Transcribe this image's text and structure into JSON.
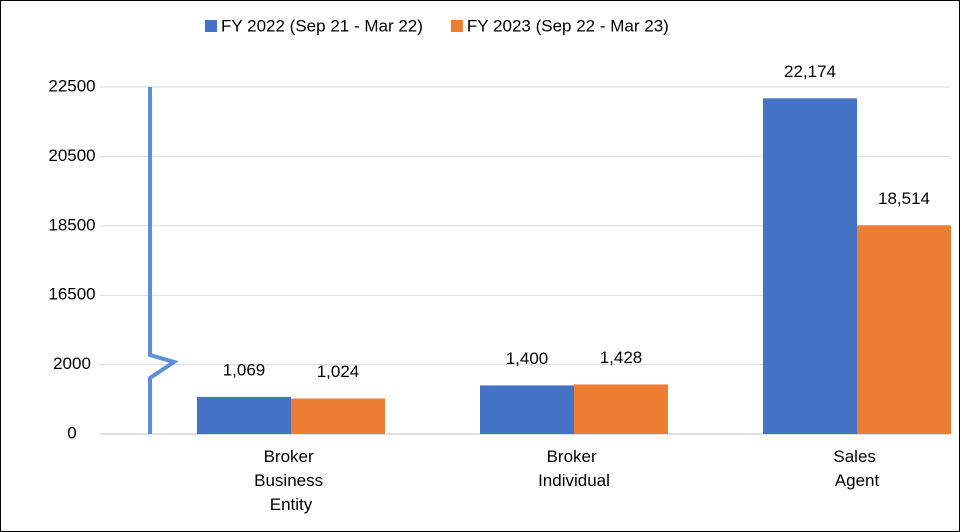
{
  "chart_data": {
    "type": "bar",
    "categories": [
      "Broker Business Entity",
      "Broker Individual",
      "Sales Agent"
    ],
    "series": [
      {
        "name": "FY 2022 (Sep 21 - Mar 22)",
        "color": "#4472c4",
        "values": [
          1069,
          1400,
          22174
        ],
        "value_labels": [
          "1,069",
          "1,400",
          "22,174"
        ]
      },
      {
        "name": "FY 2023 (Sep 22 - Mar 23)",
        "color": "#ed7d31",
        "values": [
          1024,
          1428,
          18514
        ],
        "value_labels": [
          "1,024",
          "1,428",
          "18,514"
        ]
      }
    ],
    "ylim": [
      0,
      22500
    ],
    "yticks": [
      0,
      2000,
      16500,
      18500,
      20500,
      22500
    ],
    "axis_break": true,
    "grid": true,
    "legend": "top"
  }
}
